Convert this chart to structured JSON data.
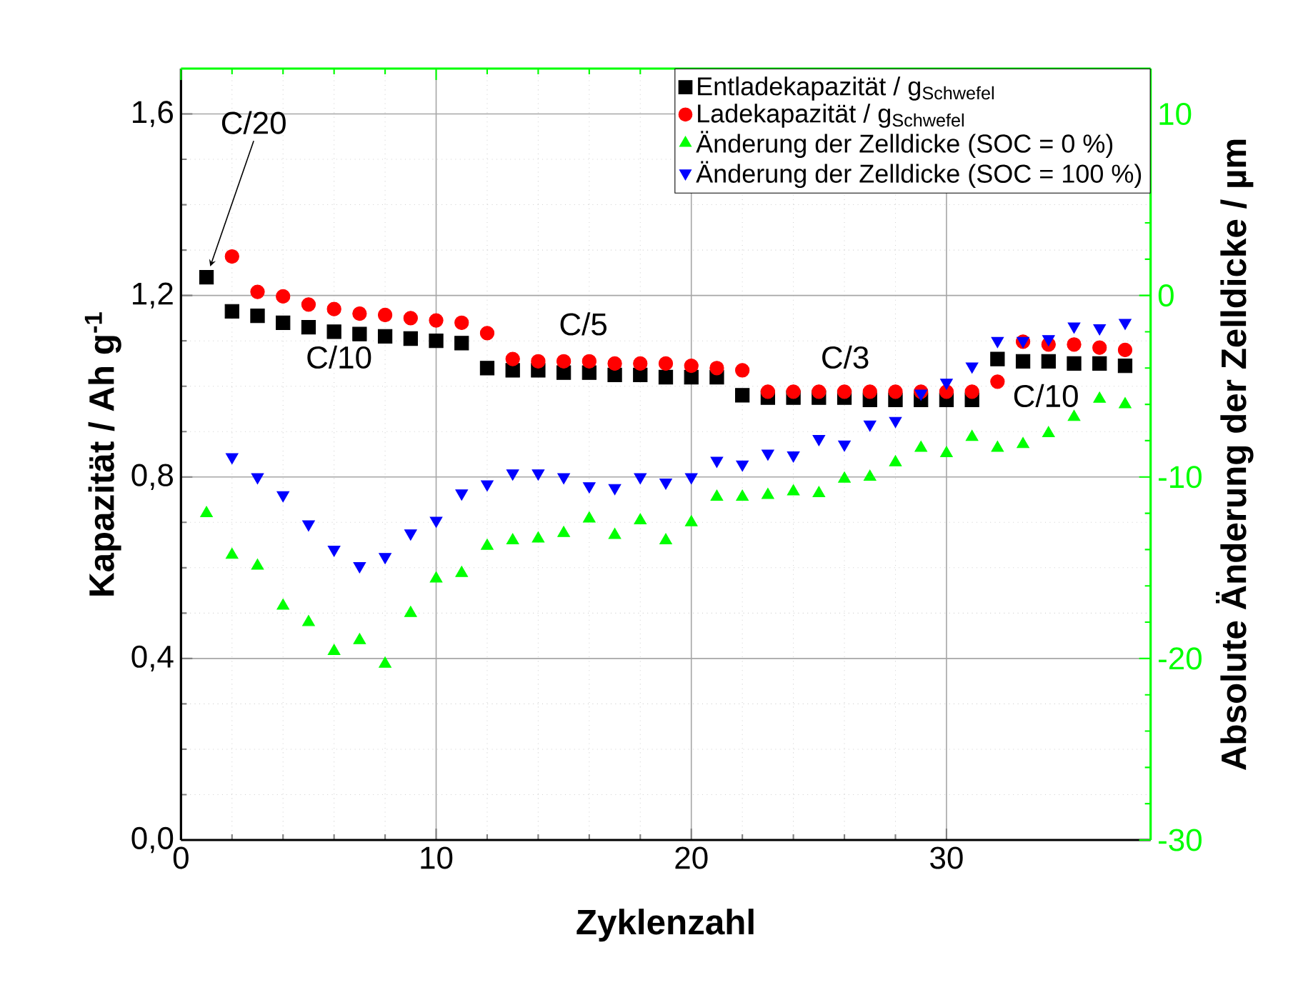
{
  "chart_data": {
    "type": "scatter",
    "xlabel": "Zyklenzahl",
    "ylabel": "Kapazität / Ah g$^{-1}$",
    "y2label": "Absolute Änderung der Zelldicke / µm",
    "x": [
      1,
      2,
      3,
      4,
      5,
      6,
      7,
      8,
      9,
      10,
      11,
      12,
      13,
      14,
      15,
      16,
      17,
      18,
      19,
      20,
      21,
      22,
      23,
      24,
      25,
      26,
      27,
      28,
      29,
      30,
      31,
      32,
      33,
      34,
      35,
      36,
      37
    ],
    "series": [
      {
        "name": "Entladekapazität / g$_{Schwefel}$",
        "color": "#000000",
        "marker": "square",
        "values": [
          1.24,
          1.165,
          1.155,
          1.14,
          1.13,
          1.12,
          1.115,
          1.11,
          1.105,
          1.1,
          1.095,
          1.04,
          1.035,
          1.035,
          1.03,
          1.03,
          1.025,
          1.025,
          1.02,
          1.02,
          1.02,
          0.98,
          0.975,
          0.975,
          0.975,
          0.975,
          0.97,
          0.97,
          0.97,
          0.97,
          0.97,
          1.06,
          1.055,
          1.055,
          1.05,
          1.05,
          1.045
        ]
      },
      {
        "name": "Ladekapazität / g$_{Schwefel}$",
        "color": "#ff0000",
        "marker": "circle",
        "values": [
          null,
          1.286,
          1.208,
          1.198,
          1.18,
          1.17,
          1.16,
          1.157,
          1.15,
          1.145,
          1.14,
          1.117,
          1.06,
          1.055,
          1.055,
          1.055,
          1.05,
          1.05,
          1.05,
          1.045,
          1.04,
          1.035,
          0.988,
          0.988,
          0.988,
          0.988,
          0.988,
          0.988,
          0.988,
          0.988,
          0.988,
          1.01,
          1.098,
          1.092,
          1.092,
          1.085,
          1.08
        ]
      },
      {
        "name": "Änderung der Zelldicke (SOC = 0 %)",
        "color": "#00ff00",
        "marker": "triangle",
        "axis": "y2",
        "values": [
          -12,
          -14.3,
          -14.9,
          -17.1,
          -18,
          -19.6,
          -19,
          -20.3,
          -17.5,
          -15.6,
          -15.3,
          -13.8,
          -13.5,
          -13.4,
          -13.1,
          -12.3,
          -13.2,
          -12.4,
          -13.5,
          -12.5,
          -11.1,
          -11.1,
          -11,
          -10.8,
          -10.9,
          -10.1,
          -10,
          -9.2,
          -8.4,
          -8.7,
          -7.8,
          -8.4,
          -8.2,
          -7.6,
          -6.7,
          -5.7,
          -6
        ]
      },
      {
        "name": "Änderung der Zelldicke (SOC = 100 %)",
        "color": "#0000ff",
        "marker": "triangle down",
        "axis": "y2",
        "values": [
          null,
          -8.9,
          -10,
          -11,
          -12.6,
          -14,
          -14.9,
          -14.4,
          -13.1,
          -12.4,
          -10.9,
          -10.4,
          -9.8,
          -9.8,
          -10,
          -10.5,
          -10.6,
          -10,
          -10.3,
          -10,
          -9.1,
          -9.3,
          -8.7,
          -8.8,
          -7.9,
          -8.2,
          -7.1,
          -6.9,
          -5.4,
          -4.8,
          -3.9,
          -2.5,
          -2.5,
          -2.4,
          -1.7,
          -1.8,
          -1.5
        ]
      }
    ],
    "xlim": [
      0,
      38
    ],
    "xticks": [
      0,
      10,
      20,
      30
    ],
    "ylim": [
      0,
      1.7
    ],
    "yticks": [
      {
        "value": 0,
        "label": "0,0"
      },
      {
        "value": 0.4,
        "label": "0,4"
      },
      {
        "value": 0.8,
        "label": "0,8"
      },
      {
        "value": 1.2,
        "label": "1,2"
      },
      {
        "value": 1.6,
        "label": "1,6"
      }
    ],
    "y2lim": [
      -30,
      12.5
    ],
    "y2ticks": [
      -30,
      -20,
      -10,
      0,
      10
    ],
    "grid": true,
    "legend": "top right",
    "annotations": [
      "C/20",
      "C/10",
      "C/5",
      "C/3",
      "C/10"
    ]
  }
}
